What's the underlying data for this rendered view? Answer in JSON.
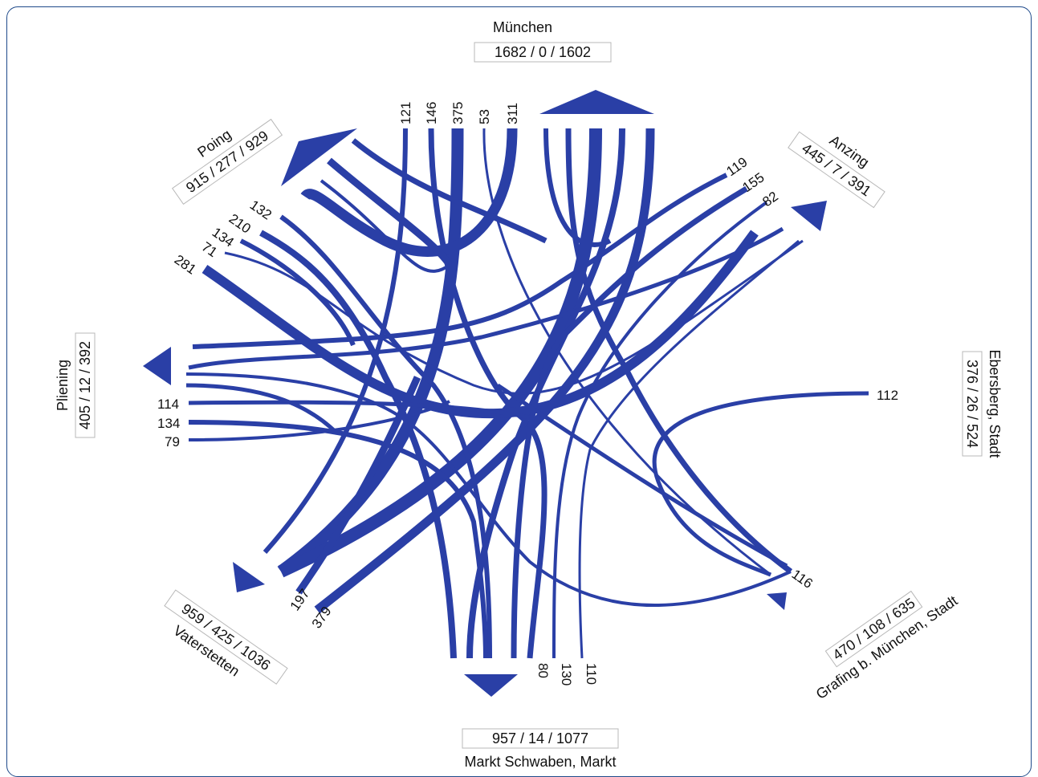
{
  "nodes": [
    {
      "id": "muenchen",
      "name": "München",
      "stats": "1682 / 0 / 1602"
    },
    {
      "id": "anzing",
      "name": "Anzing",
      "stats": "445 / 7 / 391"
    },
    {
      "id": "ebersberg",
      "name": "Ebersberg, Stadt",
      "stats": "376 / 26 / 524"
    },
    {
      "id": "grafing",
      "name": "Grafing b. München, Stadt",
      "stats": "470 / 108 / 635"
    },
    {
      "id": "schwaben",
      "name": "Markt Schwaben, Markt",
      "stats": "957 / 14 / 1077"
    },
    {
      "id": "vaterstetten",
      "name": "Vaterstetten",
      "stats": "959 / 425 / 1036"
    },
    {
      "id": "pliening",
      "name": "Pliening",
      "stats": "405 / 12 / 392"
    },
    {
      "id": "poing",
      "name": "Poing",
      "stats": "915 / 277 / 929"
    }
  ],
  "flow_labels": {
    "muenchen": [
      "121",
      "146",
      "375",
      "53",
      "311"
    ],
    "anzing": [
      "119",
      "155",
      "82"
    ],
    "ebersberg": [
      "112"
    ],
    "grafing": [
      "116"
    ],
    "schwaben": [
      "80",
      "130",
      "110"
    ],
    "vaterstetten": [
      "197",
      "379"
    ],
    "pliening": [
      "114",
      "134",
      "79"
    ],
    "poing": [
      "132",
      "210",
      "134",
      "71",
      "281"
    ]
  },
  "colors": {
    "flow": "#2a3fa6",
    "frame": "#1f4a8a"
  }
}
